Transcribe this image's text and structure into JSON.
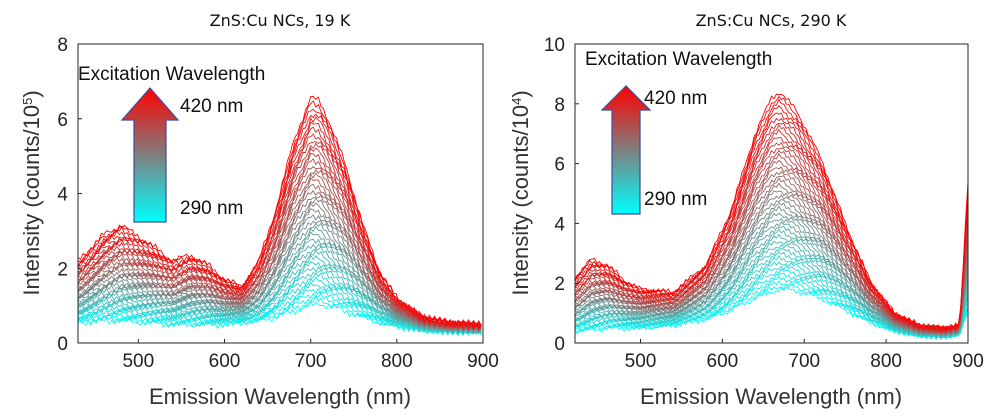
{
  "chart_data": [
    {
      "type": "line",
      "title": "ZnS:Cu NCs, 19 K",
      "xlabel": "Emission Wavelength (nm)",
      "ylabel": "Intensity (counts/10",
      "ylabel_sup": "5",
      "ylabel_close": ")",
      "xlim": [
        430,
        900
      ],
      "ylim": [
        0,
        8
      ],
      "xticks": [
        500,
        600,
        700,
        800,
        900
      ],
      "yticks": [
        0,
        2,
        4,
        6,
        8
      ],
      "annotation": {
        "title": "Excitation Wavelength",
        "top": "420 nm",
        "bottom": "290 nm"
      },
      "color_scale": {
        "from_label": "290 nm",
        "to_label": "420 nm",
        "colors": [
          "#00ffff",
          "#7f7f7f",
          "#ff0000"
        ]
      },
      "series_count": 44,
      "envelope": {
        "x": [
          430,
          460,
          480,
          510,
          540,
          560,
          580,
          600,
          620,
          640,
          660,
          680,
          700,
          710,
          720,
          740,
          760,
          780,
          800,
          830,
          860,
          900
        ],
        "upper": [
          2.2,
          2.9,
          3.15,
          2.7,
          2.2,
          2.35,
          2.1,
          1.7,
          1.5,
          2.2,
          3.6,
          5.4,
          6.55,
          6.5,
          6.0,
          4.8,
          3.2,
          1.9,
          1.2,
          0.7,
          0.55,
          0.5
        ],
        "lower": [
          0.55,
          0.6,
          0.6,
          0.55,
          0.5,
          0.5,
          0.5,
          0.5,
          0.55,
          0.6,
          0.7,
          0.85,
          1.0,
          1.05,
          1.0,
          0.85,
          0.7,
          0.55,
          0.45,
          0.35,
          0.3,
          0.3
        ]
      }
    },
    {
      "type": "line",
      "title": "ZnS:Cu NCs, 290 K",
      "xlabel": "Emission Wavelength (nm)",
      "ylabel": "Intensity (counts/10",
      "ylabel_sup": "4",
      "ylabel_close": ")",
      "xlim": [
        420,
        900
      ],
      "ylim": [
        0,
        10
      ],
      "xticks": [
        500,
        600,
        700,
        800,
        900
      ],
      "yticks": [
        0,
        2,
        4,
        6,
        8,
        10
      ],
      "annotation": {
        "title": "Excitation Wavelength",
        "top": "420 nm",
        "bottom": "290 nm"
      },
      "color_scale": {
        "from_label": "290 nm",
        "to_label": "420 nm",
        "colors": [
          "#00ffff",
          "#7f7f7f",
          "#ff0000"
        ]
      },
      "series_count": 44,
      "envelope": {
        "x": [
          420,
          440,
          460,
          480,
          500,
          540,
          580,
          610,
          640,
          660,
          670,
          690,
          720,
          750,
          780,
          810,
          840,
          870,
          890,
          900
        ],
        "upper": [
          2.2,
          2.8,
          2.6,
          2.1,
          1.8,
          1.7,
          2.6,
          4.4,
          7.0,
          8.2,
          8.4,
          7.8,
          6.2,
          4.0,
          2.1,
          1.0,
          0.6,
          0.5,
          0.6,
          5.4
        ],
        "lower": [
          0.4,
          0.45,
          0.5,
          0.5,
          0.5,
          0.6,
          0.8,
          1.1,
          1.5,
          1.7,
          1.8,
          1.75,
          1.5,
          1.1,
          0.7,
          0.4,
          0.25,
          0.2,
          0.3,
          1.0
        ]
      }
    }
  ]
}
